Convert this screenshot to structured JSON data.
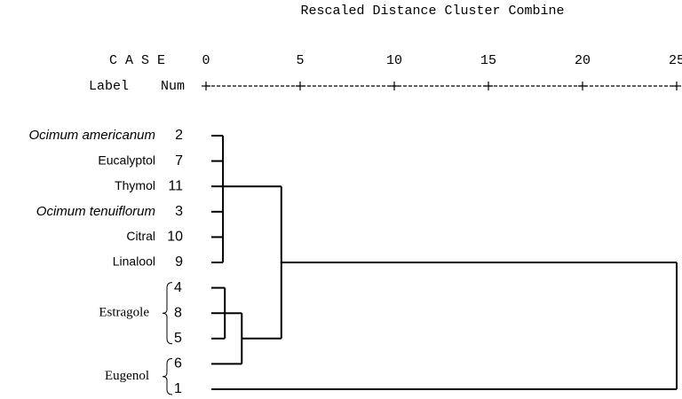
{
  "chart_data": {
    "type": "dendrogram",
    "title": "Rescaled Distance Cluster Combine",
    "case_header": "C A S E",
    "label_header": "Label",
    "num_header": "Num",
    "xlim": [
      0,
      25
    ],
    "xticks": [
      0,
      5,
      10,
      15,
      20,
      25
    ],
    "leaves": [
      {
        "label": "Ocimum americanum",
        "num": 2,
        "italic": true
      },
      {
        "label": "Eucalyptol",
        "num": 7
      },
      {
        "label": "Thymol",
        "num": 11
      },
      {
        "label": "Ocimum tenuiflorum",
        "num": 3,
        "italic": true
      },
      {
        "label": "Citral",
        "num": 10
      },
      {
        "label": "Linalool",
        "num": 9
      },
      {
        "label": "Estragole",
        "nums": [
          4,
          8,
          5
        ]
      },
      {
        "label": "Eugenol",
        "nums": [
          6,
          1
        ]
      }
    ],
    "merges": [
      {
        "cases": [
          2,
          7,
          11,
          3,
          10,
          9
        ],
        "distance": 0.9
      },
      {
        "cases": [
          4,
          8,
          5
        ],
        "distance": 1
      },
      {
        "cases": [
          4,
          8,
          5,
          6
        ],
        "distance": 1.9
      },
      {
        "cases": [
          2,
          7,
          11,
          3,
          10,
          9,
          4,
          8,
          5,
          6
        ],
        "distance": 4
      },
      {
        "cases": [
          2,
          7,
          11,
          3,
          10,
          9,
          4,
          8,
          5,
          6,
          1
        ],
        "distance": 25
      }
    ]
  }
}
